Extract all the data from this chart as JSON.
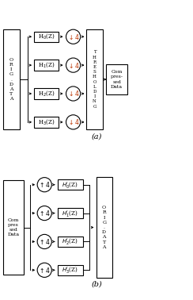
{
  "bg_color": "#ffffff",
  "box_color": "#ffffff",
  "box_edge": "#000000",
  "arrow_color": "#000000",
  "downsample_color": "#bb3300",
  "title_a": "(a)",
  "title_b": "(b)",
  "filters_a": [
    "H$_0$(Z)",
    "H$_1$(Z)",
    "H$_2$(Z)",
    "H$_3$(Z)"
  ],
  "filters_b": [
    "H$_0^{\\tilde{}}$(Z)",
    "H$_1^{\\tilde{}}$(Z)",
    "H$_2^{\\tilde{}}$(Z)",
    "H$_3^{\\tilde{}}$(Z)"
  ],
  "downsample_sym": "$\\downarrow$4",
  "upsample_sym": "$\\uparrow$4",
  "orig_label": "O\nR\nI\nG\n.\nD\nA\nT\nA",
  "thresh_label": "T\nH\nR\nE\nS\nH\nO\nL\nD\nI\nN\nG",
  "compressed_label_a": "Com\npres-\nsed\nData",
  "compressed_label_b": "Com\npres\nsed\nData"
}
